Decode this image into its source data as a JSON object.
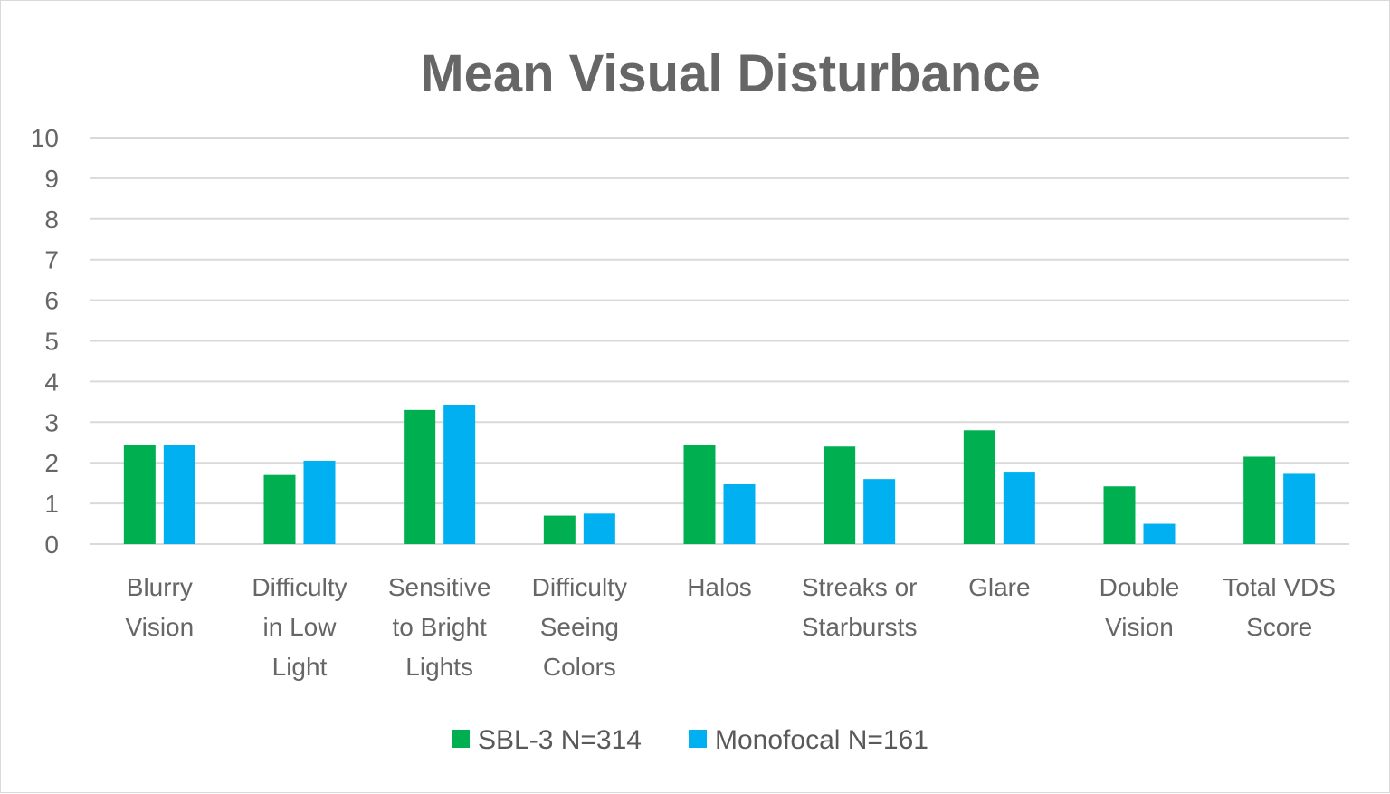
{
  "chart_data": {
    "type": "bar",
    "title": "Mean Visual Disturbance",
    "xlabel": "",
    "ylabel": "",
    "ylim": [
      0,
      10
    ],
    "yticks": [
      "0",
      "1",
      "2",
      "3",
      "4",
      "5",
      "6",
      "7",
      "8",
      "9",
      "10"
    ],
    "grid": true,
    "legend_position": "bottom",
    "categories": [
      [
        "Blurry",
        "Vision"
      ],
      [
        "Difficulty",
        "in Low",
        "Light"
      ],
      [
        "Sensitive",
        "to Bright",
        "Lights"
      ],
      [
        "Difficulty",
        "Seeing",
        "Colors"
      ],
      [
        "Halos"
      ],
      [
        "Streaks or",
        "Starbursts"
      ],
      [
        "Glare"
      ],
      [
        "Double",
        "Vision"
      ],
      [
        "Total VDS",
        "Score"
      ]
    ],
    "series": [
      {
        "name": "SBL-3 N=314",
        "color": "#00b050",
        "values": [
          2.45,
          1.7,
          3.3,
          0.7,
          2.45,
          2.4,
          2.8,
          1.42,
          2.15
        ]
      },
      {
        "name": "Monofocal N=161",
        "color": "#00b0f0",
        "values": [
          2.45,
          2.05,
          3.43,
          0.75,
          1.47,
          1.6,
          1.78,
          0.5,
          1.75
        ]
      }
    ]
  }
}
